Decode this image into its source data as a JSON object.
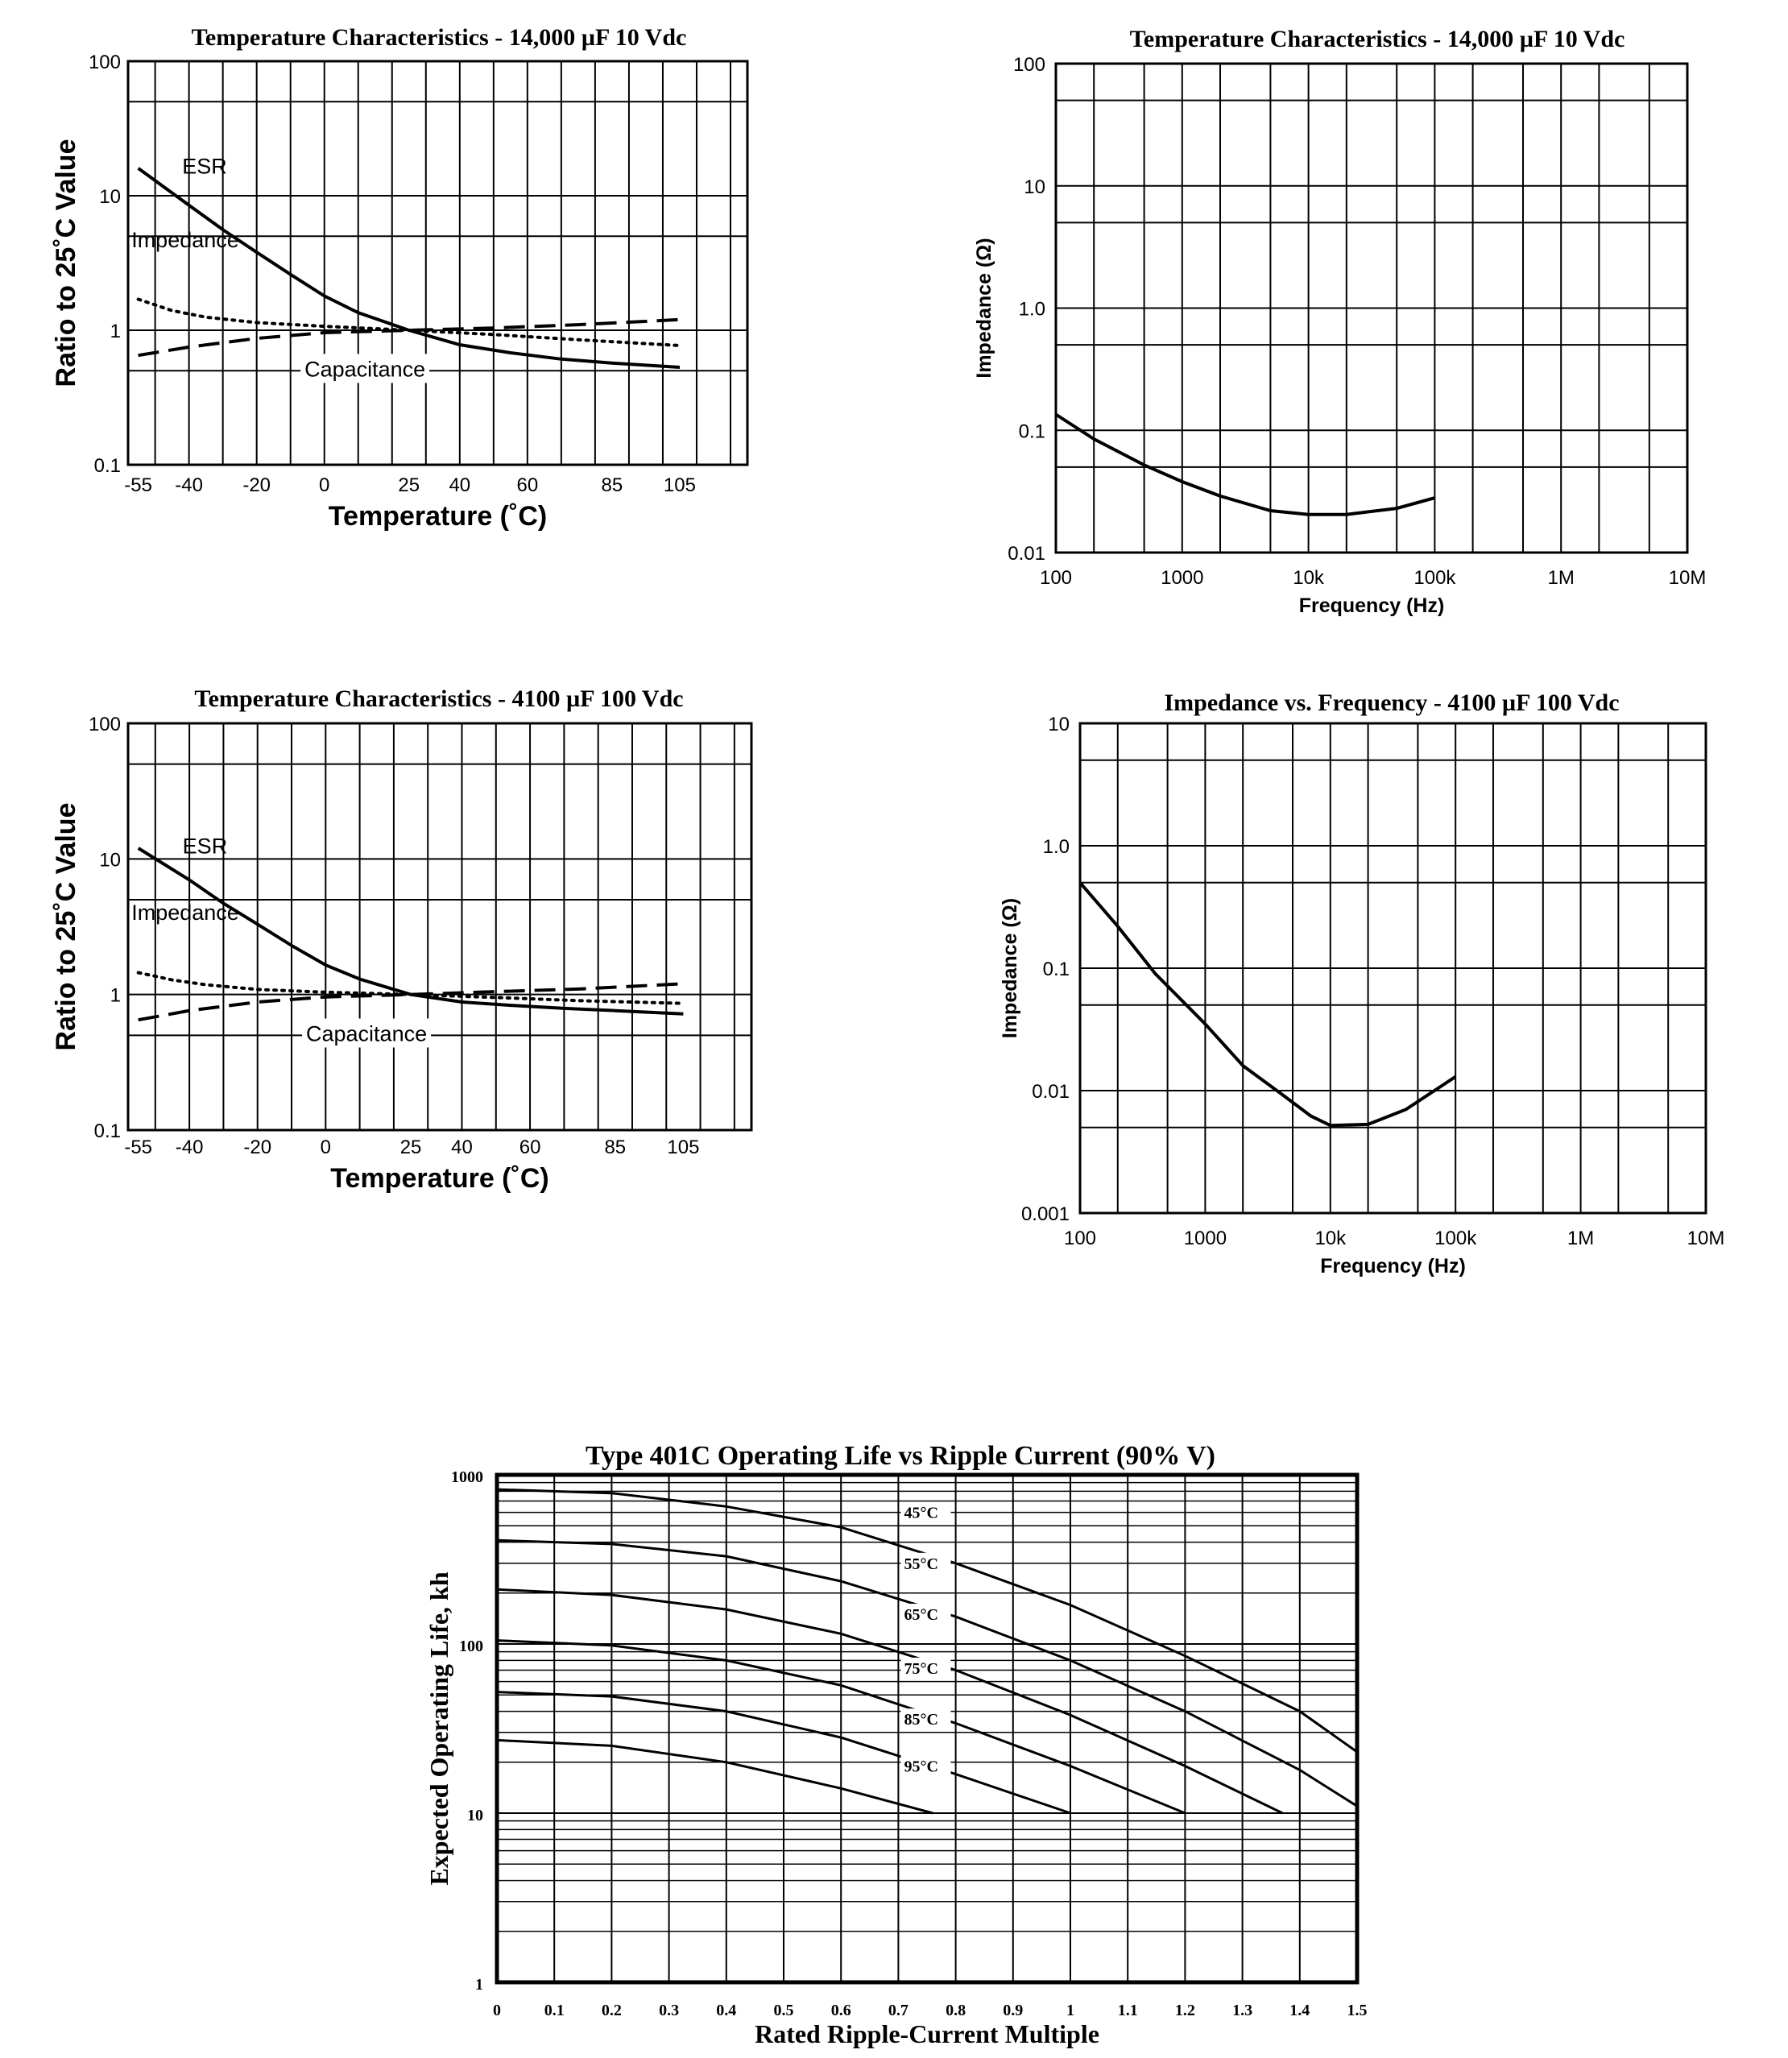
{
  "chart_data": [
    {
      "id": "temp14000",
      "type": "line",
      "title": "Temperature Characteristics - 14,000 µF 10 Vdc",
      "xlabel": "Temperature (˚C)",
      "ylabel": "Ratio to 25˚C Value",
      "xscale": "linear",
      "yscale": "log",
      "xlim": [
        -58,
        125
      ],
      "ylim": [
        0.1,
        100
      ],
      "x_ticks": [
        -55,
        -40,
        -20,
        0,
        25,
        40,
        60,
        85,
        105
      ],
      "x_tick_labels": [
        "-55",
        "-40",
        "-20",
        "0",
        "25",
        "40",
        "60",
        "85",
        "105"
      ],
      "y_ticks": [
        0.1,
        1,
        10,
        100
      ],
      "y_tick_labels": [
        "0.1",
        "1",
        "10",
        "100"
      ],
      "grid": true,
      "series": [
        {
          "name": "ESR",
          "style": "solid",
          "label": "ESR",
          "points": [
            [
              -55,
              16
            ],
            [
              -40,
              8.5
            ],
            [
              -30,
              5.6
            ],
            [
              -20,
              3.8
            ],
            [
              -10,
              2.6
            ],
            [
              0,
              1.8
            ],
            [
              10,
              1.35
            ],
            [
              25,
              1.0
            ],
            [
              40,
              0.78
            ],
            [
              55,
              0.68
            ],
            [
              70,
              0.61
            ],
            [
              85,
              0.57
            ],
            [
              105,
              0.53
            ]
          ]
        },
        {
          "name": "Impedance",
          "style": "dotted",
          "label": "Impedance",
          "points": [
            [
              -55,
              1.7
            ],
            [
              -45,
              1.4
            ],
            [
              -35,
              1.25
            ],
            [
              -20,
              1.14
            ],
            [
              0,
              1.07
            ],
            [
              25,
              1.0
            ],
            [
              50,
              0.93
            ],
            [
              75,
              0.85
            ],
            [
              105,
              0.77
            ]
          ]
        },
        {
          "name": "Capacitance",
          "style": "dashed",
          "label": "Capacitance",
          "points": [
            [
              -55,
              0.65
            ],
            [
              -40,
              0.75
            ],
            [
              -20,
              0.87
            ],
            [
              0,
              0.96
            ],
            [
              25,
              1.0
            ],
            [
              50,
              1.04
            ],
            [
              75,
              1.1
            ],
            [
              105,
              1.2
            ]
          ]
        }
      ]
    },
    {
      "id": "imp14000",
      "type": "line",
      "title": "Temperature Characteristics - 14,000 µF 10 Vdc",
      "xlabel": "Frequency (Hz)",
      "ylabel": "Impedance (Ω)",
      "xscale": "log",
      "yscale": "log",
      "xlim": [
        100,
        10000000
      ],
      "ylim": [
        0.01,
        100
      ],
      "x_ticks": [
        100,
        1000,
        10000,
        100000,
        1000000,
        10000000
      ],
      "x_tick_labels": [
        "100",
        "1000",
        "10k",
        "100k",
        "1M",
        "10M"
      ],
      "y_ticks": [
        0.01,
        0.1,
        1,
        10,
        100
      ],
      "y_tick_labels": [
        "0.01",
        "0.1",
        "1.0",
        "10",
        "100"
      ],
      "grid": true,
      "series": [
        {
          "name": "Impedance",
          "style": "solid",
          "points": [
            [
              100,
              0.135
            ],
            [
              200,
              0.085
            ],
            [
              500,
              0.052
            ],
            [
              1000,
              0.038
            ],
            [
              2000,
              0.029
            ],
            [
              5000,
              0.022
            ],
            [
              10000,
              0.0205
            ],
            [
              20000,
              0.0205
            ],
            [
              50000,
              0.023
            ],
            [
              100000,
              0.028
            ]
          ]
        }
      ]
    },
    {
      "id": "temp4100",
      "type": "line",
      "title": "Temperature Characteristics - 4100 µF 100 Vdc",
      "xlabel": "Temperature (˚C)",
      "ylabel": "Ratio to 25˚C Value",
      "xscale": "linear",
      "yscale": "log",
      "xlim": [
        -58,
        125
      ],
      "ylim": [
        0.1,
        100
      ],
      "x_ticks": [
        -55,
        -40,
        -20,
        0,
        25,
        40,
        60,
        85,
        105
      ],
      "x_tick_labels": [
        "-55",
        "-40",
        "-20",
        "0",
        "25",
        "40",
        "60",
        "85",
        "105"
      ],
      "y_ticks": [
        0.1,
        1,
        10,
        100
      ],
      "y_tick_labels": [
        "0.1",
        "1",
        "10",
        "100"
      ],
      "grid": true,
      "series": [
        {
          "name": "ESR",
          "style": "solid",
          "label": "ESR",
          "points": [
            [
              -55,
              12
            ],
            [
              -40,
              7
            ],
            [
              -30,
              4.7
            ],
            [
              -20,
              3.3
            ],
            [
              -10,
              2.3
            ],
            [
              0,
              1.65
            ],
            [
              10,
              1.3
            ],
            [
              25,
              1.0
            ],
            [
              40,
              0.88
            ],
            [
              55,
              0.83
            ],
            [
              70,
              0.79
            ],
            [
              85,
              0.76
            ],
            [
              105,
              0.72
            ]
          ]
        },
        {
          "name": "Impedance",
          "style": "dotted",
          "label": "Impedance",
          "points": [
            [
              -55,
              1.45
            ],
            [
              -45,
              1.28
            ],
            [
              -35,
              1.18
            ],
            [
              -20,
              1.09
            ],
            [
              0,
              1.04
            ],
            [
              25,
              1.0
            ],
            [
              50,
              0.95
            ],
            [
              75,
              0.9
            ],
            [
              105,
              0.86
            ]
          ]
        },
        {
          "name": "Capacitance",
          "style": "dashed",
          "label": "Capacitance",
          "points": [
            [
              -55,
              0.65
            ],
            [
              -40,
              0.76
            ],
            [
              -20,
              0.88
            ],
            [
              0,
              0.96
            ],
            [
              25,
              1.0
            ],
            [
              50,
              1.05
            ],
            [
              75,
              1.1
            ],
            [
              105,
              1.2
            ]
          ]
        }
      ]
    },
    {
      "id": "imp4100",
      "type": "line",
      "title": "Impedance vs. Frequency - 4100 µF 100 Vdc",
      "xlabel": "Frequency (Hz)",
      "ylabel": "Impedance (Ω)",
      "xscale": "log",
      "yscale": "log",
      "xlim": [
        100,
        10000000
      ],
      "ylim": [
        0.001,
        10
      ],
      "x_ticks": [
        100,
        1000,
        10000,
        100000,
        1000000,
        10000000
      ],
      "x_tick_labels": [
        "100",
        "1000",
        "10k",
        "100k",
        "1M",
        "10M"
      ],
      "y_ticks": [
        0.001,
        0.01,
        0.1,
        1,
        10
      ],
      "y_tick_labels": [
        "0.001",
        "0.01",
        "0.1",
        "1.0",
        "10"
      ],
      "grid": true,
      "series": [
        {
          "name": "Impedance",
          "style": "solid",
          "points": [
            [
              100,
              0.5
            ],
            [
              200,
              0.22
            ],
            [
              400,
              0.09
            ],
            [
              1000,
              0.035
            ],
            [
              2000,
              0.016
            ],
            [
              4000,
              0.0095
            ],
            [
              7000,
              0.0062
            ],
            [
              10000,
              0.0052
            ],
            [
              20000,
              0.0053
            ],
            [
              40000,
              0.007
            ],
            [
              100000,
              0.013
            ]
          ]
        }
      ]
    },
    {
      "id": "life401c",
      "type": "line",
      "title": "Type 401C Operating Life vs Ripple Current (90% V)",
      "xlabel": "Rated Ripple-Current Multiple",
      "ylabel": "Expected Operating Life, kh",
      "xscale": "linear",
      "yscale": "log",
      "xlim": [
        0,
        1.5
      ],
      "ylim": [
        1,
        1000
      ],
      "x_ticks": [
        0,
        0.1,
        0.2,
        0.3,
        0.4,
        0.5,
        0.6,
        0.7,
        0.8,
        0.9,
        1.0,
        1.1,
        1.2,
        1.3,
        1.4,
        1.5
      ],
      "x_tick_labels": [
        "0",
        "0.1",
        "0.2",
        "0.3",
        "0.4",
        "0.5",
        "0.6",
        "0.7",
        "0.8",
        "0.9",
        "1",
        "1.1",
        "1.2",
        "1.3",
        "1.4",
        "1.5"
      ],
      "y_ticks": [
        1,
        10,
        100,
        1000
      ],
      "y_tick_labels": [
        "1",
        "10",
        "100",
        "1000"
      ],
      "grid": true,
      "series": [
        {
          "name": "45°C",
          "label": "45°C",
          "label_at": [
            0.71,
            600
          ],
          "points": [
            [
              0,
              820
            ],
            [
              0.2,
              780
            ],
            [
              0.4,
              650
            ],
            [
              0.6,
              490
            ],
            [
              0.8,
              300
            ],
            [
              1.0,
              170
            ],
            [
              1.2,
              85
            ],
            [
              1.4,
              40
            ],
            [
              1.5,
              23
            ]
          ]
        },
        {
          "name": "55°C",
          "label": "55°C",
          "label_at": [
            0.71,
            300
          ],
          "points": [
            [
              0,
              410
            ],
            [
              0.2,
              390
            ],
            [
              0.4,
              330
            ],
            [
              0.6,
              235
            ],
            [
              0.8,
              145
            ],
            [
              1.0,
              80
            ],
            [
              1.2,
              40
            ],
            [
              1.4,
              18
            ],
            [
              1.5,
              11
            ]
          ]
        },
        {
          "name": "65°C",
          "label": "65°C",
          "label_at": [
            0.71,
            150
          ],
          "points": [
            [
              0,
              210
            ],
            [
              0.2,
              195
            ],
            [
              0.4,
              160
            ],
            [
              0.6,
              115
            ],
            [
              0.8,
              70
            ],
            [
              1.0,
              38
            ],
            [
              1.2,
              19
            ],
            [
              1.37,
              10
            ]
          ]
        },
        {
          "name": "75°C",
          "label": "75°C",
          "label_at": [
            0.71,
            72
          ],
          "points": [
            [
              0,
              105
            ],
            [
              0.2,
              98
            ],
            [
              0.4,
              80
            ],
            [
              0.6,
              57
            ],
            [
              0.8,
              34
            ],
            [
              1.0,
              19
            ],
            [
              1.2,
              10
            ]
          ]
        },
        {
          "name": "85°C",
          "label": "85°C",
          "label_at": [
            0.71,
            36
          ],
          "points": [
            [
              0,
              52
            ],
            [
              0.2,
              49
            ],
            [
              0.4,
              40
            ],
            [
              0.6,
              28
            ],
            [
              0.8,
              17
            ],
            [
              1.0,
              10
            ]
          ]
        },
        {
          "name": "95°C",
          "label": "95°C",
          "label_at": [
            0.71,
            19
          ],
          "points": [
            [
              0,
              27
            ],
            [
              0.2,
              25
            ],
            [
              0.4,
              20
            ],
            [
              0.6,
              14
            ],
            [
              0.76,
              10
            ]
          ]
        }
      ]
    }
  ]
}
